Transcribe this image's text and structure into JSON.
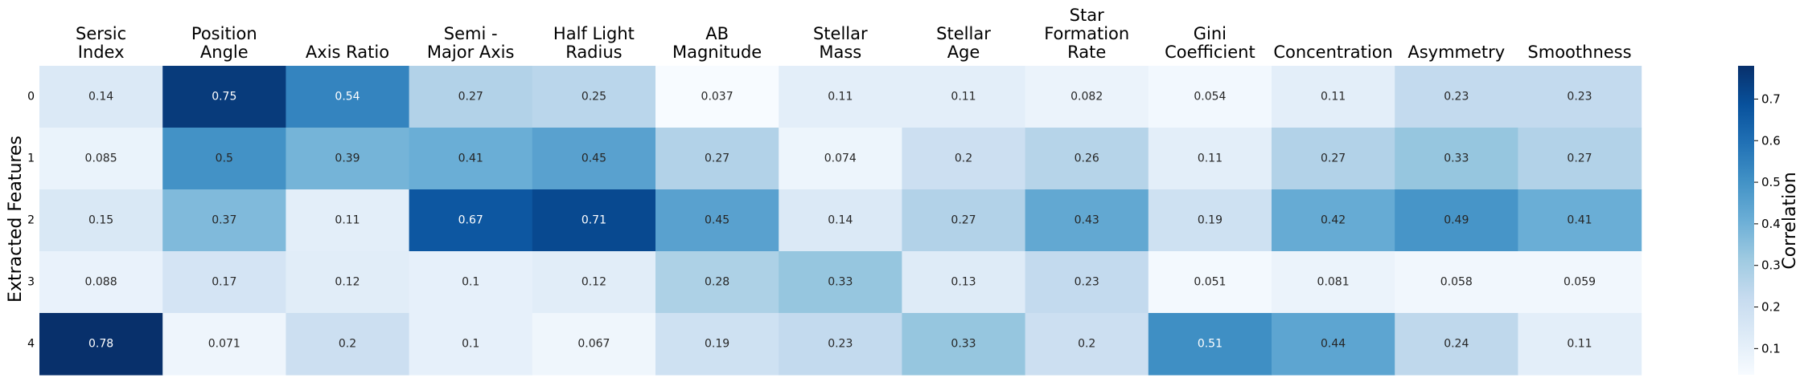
{
  "chart_data": {
    "type": "heatmap",
    "title": "",
    "xlabel": "",
    "ylabel": "Extracted Features",
    "colorbar_label": "Correlation",
    "colormap": "Blues",
    "vmin": 0.037,
    "vmax": 0.78,
    "colorbar_ticks": [
      "0.1",
      "0.2",
      "0.3",
      "0.4",
      "0.5",
      "0.6",
      "0.7"
    ],
    "columns": [
      "Sersic\nIndex",
      "Position\nAngle",
      "Axis Ratio",
      "Semi -\nMajor Axis",
      "Half Light\nRadius",
      "AB\nMagnitude",
      "Stellar\nMass",
      "Stellar\nAge",
      "Star\nFormation\nRate",
      "Gini\nCoefficient",
      "Concentration",
      "Asymmetry",
      "Smoothness"
    ],
    "rows": [
      "0",
      "1",
      "2",
      "3",
      "4"
    ],
    "values": [
      [
        0.14,
        0.75,
        0.54,
        0.27,
        0.25,
        0.037,
        0.11,
        0.11,
        0.082,
        0.054,
        0.11,
        0.23,
        0.23
      ],
      [
        0.085,
        0.5,
        0.39,
        0.41,
        0.45,
        0.27,
        0.074,
        0.2,
        0.26,
        0.11,
        0.27,
        0.33,
        0.27
      ],
      [
        0.15,
        0.37,
        0.11,
        0.67,
        0.71,
        0.45,
        0.14,
        0.27,
        0.43,
        0.19,
        0.42,
        0.49,
        0.41
      ],
      [
        0.088,
        0.17,
        0.12,
        0.1,
        0.12,
        0.28,
        0.33,
        0.13,
        0.23,
        0.051,
        0.081,
        0.058,
        0.059
      ],
      [
        0.78,
        0.071,
        0.2,
        0.1,
        0.067,
        0.19,
        0.23,
        0.33,
        0.2,
        0.51,
        0.44,
        0.24,
        0.11
      ]
    ],
    "value_labels": [
      [
        "0.14",
        "0.75",
        "0.54",
        "0.27",
        "0.25",
        "0.037",
        "0.11",
        "0.11",
        "0.082",
        "0.054",
        "0.11",
        "0.23",
        "0.23"
      ],
      [
        "0.085",
        "0.5",
        "0.39",
        "0.41",
        "0.45",
        "0.27",
        "0.074",
        "0.2",
        "0.26",
        "0.11",
        "0.27",
        "0.33",
        "0.27"
      ],
      [
        "0.15",
        "0.37",
        "0.11",
        "0.67",
        "0.71",
        "0.45",
        "0.14",
        "0.27",
        "0.43",
        "0.19",
        "0.42",
        "0.49",
        "0.41"
      ],
      [
        "0.088",
        "0.17",
        "0.12",
        "0.1",
        "0.12",
        "0.28",
        "0.33",
        "0.13",
        "0.23",
        "0.051",
        "0.081",
        "0.058",
        "0.059"
      ],
      [
        "0.78",
        "0.071",
        "0.2",
        "0.1",
        "0.067",
        "0.19",
        "0.23",
        "0.33",
        "0.2",
        "0.51",
        "0.44",
        "0.24",
        "0.11"
      ]
    ]
  }
}
